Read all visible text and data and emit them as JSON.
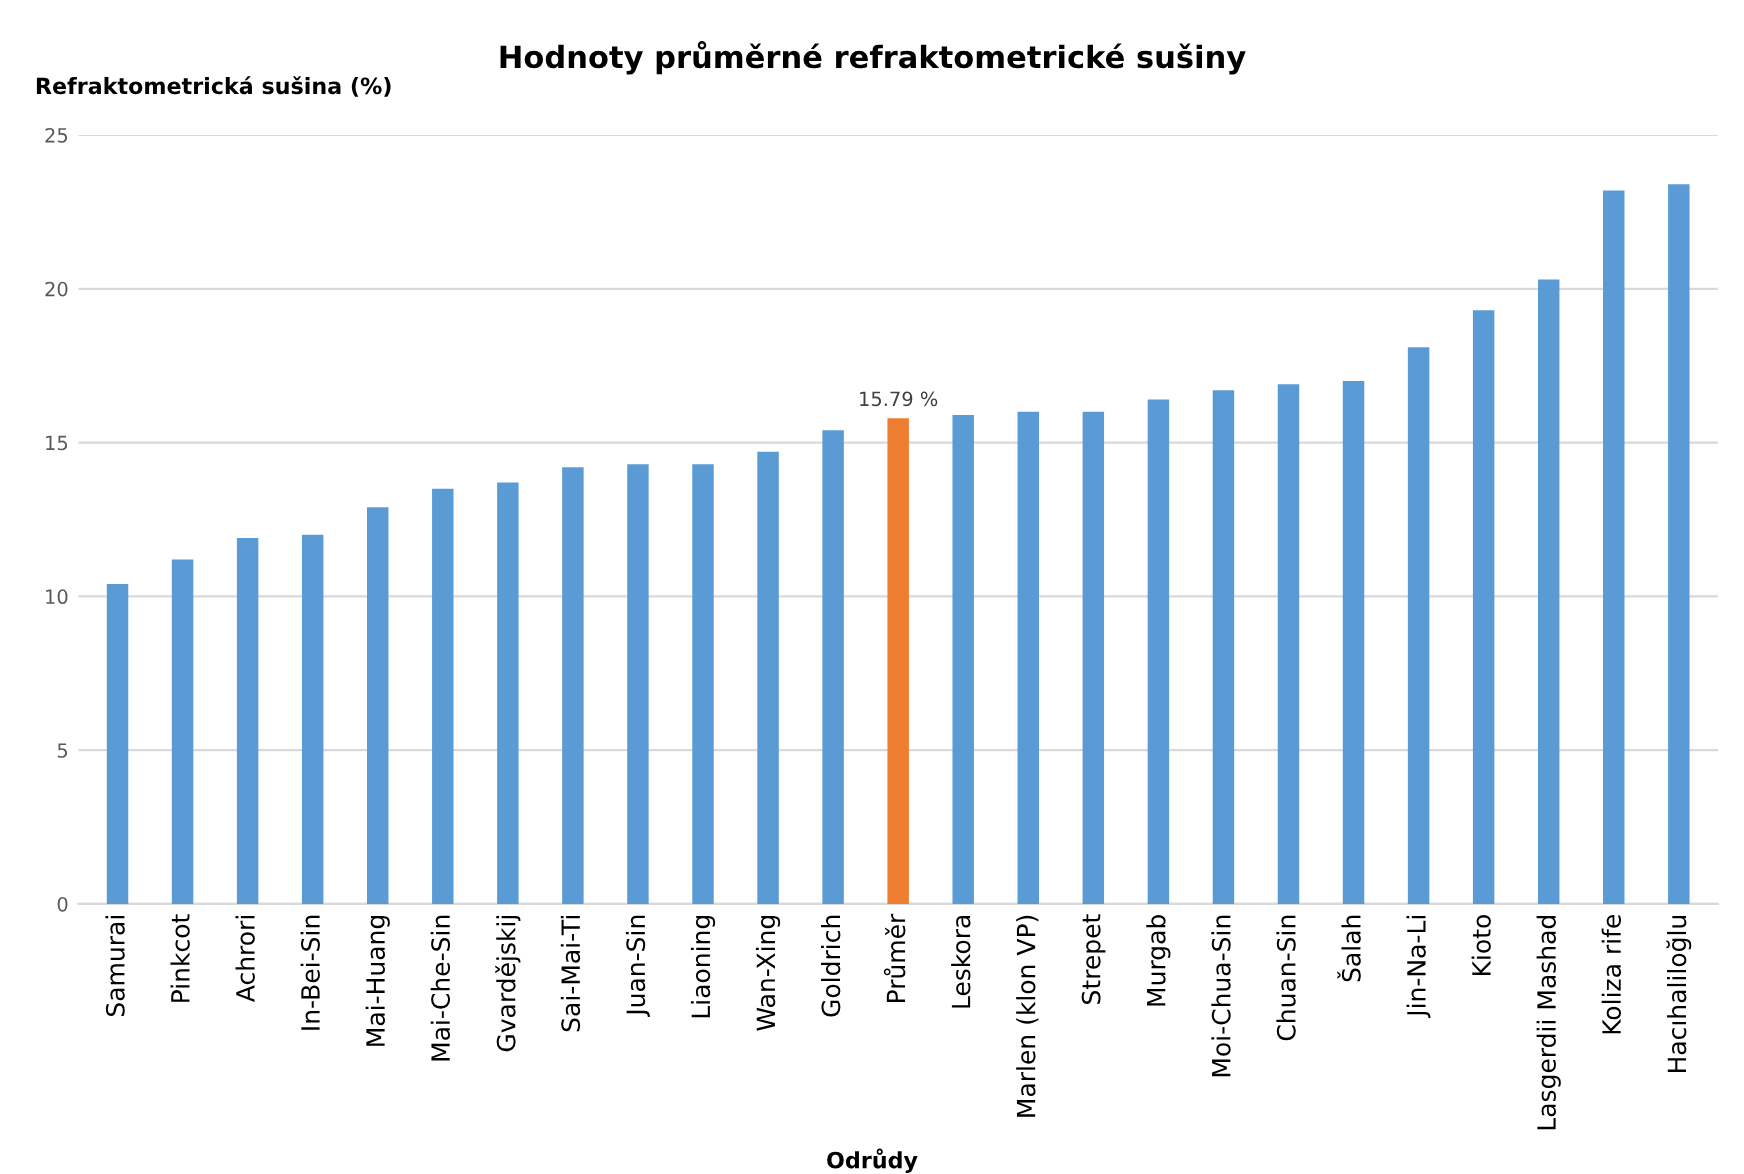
{
  "chart_data": {
    "type": "bar",
    "title": "Hodnoty průměrné refraktometrické sušiny",
    "ylabel": "Refraktometrická sušina (%)",
    "xlabel": "Odrůdy",
    "categories": [
      "Samurai",
      "Pinkcot",
      "Achrori",
      "In-Bei-Sin",
      "Mai-Huang",
      "Mai-Che-Sin",
      "Gvardějskij",
      "Sai-Mai-Ti",
      "Juan-Sin",
      "Liaoning",
      "Wan-Xing",
      "Goldrich",
      "Průměr",
      "Leskora",
      "Marlen (klon VP)",
      "Strepet",
      "Murgab",
      "Moi-Chua-Sin",
      "Chuan-Sin",
      "Šalah",
      "Jin-Na-Li",
      "Kioto",
      "Lasgerdii Mashad",
      "Koliza rife",
      "Hacıhaliloğlu"
    ],
    "values": [
      10.4,
      11.2,
      11.9,
      12.0,
      12.9,
      13.5,
      13.7,
      14.2,
      14.3,
      14.3,
      14.7,
      15.4,
      15.79,
      15.9,
      16.0,
      16.0,
      16.4,
      16.7,
      16.9,
      17.0,
      18.1,
      19.3,
      20.3,
      23.2,
      23.4
    ],
    "colors": [
      "#5b9bd5",
      "#5b9bd5",
      "#5b9bd5",
      "#5b9bd5",
      "#5b9bd5",
      "#5b9bd5",
      "#5b9bd5",
      "#5b9bd5",
      "#5b9bd5",
      "#5b9bd5",
      "#5b9bd5",
      "#5b9bd5",
      "#ed7d31",
      "#5b9bd5",
      "#5b9bd5",
      "#5b9bd5",
      "#5b9bd5",
      "#5b9bd5",
      "#5b9bd5",
      "#5b9bd5",
      "#5b9bd5",
      "#5b9bd5",
      "#5b9bd5",
      "#5b9bd5",
      "#5b9bd5"
    ],
    "value_labels": [
      null,
      null,
      null,
      null,
      null,
      null,
      null,
      null,
      null,
      null,
      null,
      null,
      "15.79 %",
      null,
      null,
      null,
      null,
      null,
      null,
      null,
      null,
      null,
      null,
      null,
      null
    ],
    "ylim": [
      0,
      25
    ],
    "yticks": [
      0,
      5,
      10,
      15,
      20,
      25
    ],
    "grid": "y"
  }
}
